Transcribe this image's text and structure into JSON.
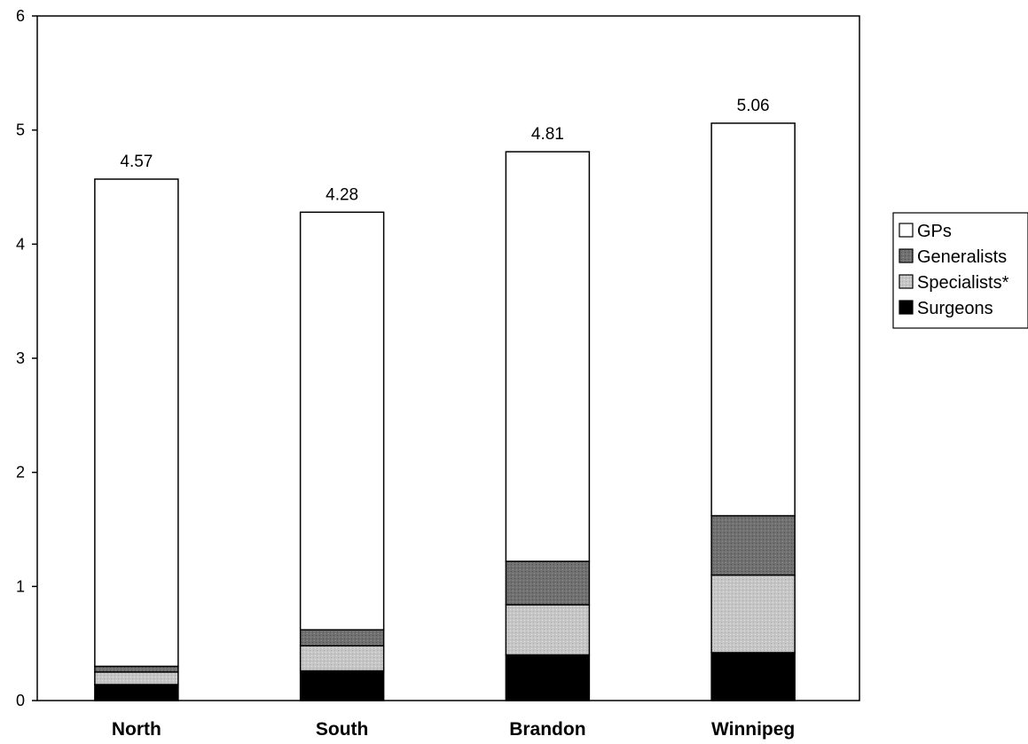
{
  "chart_data": {
    "type": "bar",
    "stacked": true,
    "categories": [
      "North",
      "South",
      "Brandon",
      "Winnipeg"
    ],
    "series": [
      {
        "name": "Surgeons",
        "values": [
          0.14,
          0.26,
          0.4,
          0.42
        ],
        "color": "#000000"
      },
      {
        "name": "Specialists*",
        "values": [
          0.11,
          0.22,
          0.44,
          0.68
        ],
        "color": "#c4c4c4"
      },
      {
        "name": "Generalists",
        "values": [
          0.05,
          0.14,
          0.38,
          0.52
        ],
        "color": "#6e6e6e"
      },
      {
        "name": "GPs",
        "values": [
          4.27,
          3.66,
          3.59,
          3.44
        ],
        "color": "#ffffff"
      }
    ],
    "totals": [
      "4.57",
      "4.28",
      "4.81",
      "5.06"
    ],
    "ylim": [
      0,
      6
    ],
    "yticks": [
      "0",
      "1",
      "2",
      "3",
      "4",
      "5",
      "6"
    ],
    "legend_order": [
      "GPs",
      "Generalists",
      "Specialists*",
      "Surgeons"
    ],
    "legend_placement": "right",
    "grid": false
  }
}
